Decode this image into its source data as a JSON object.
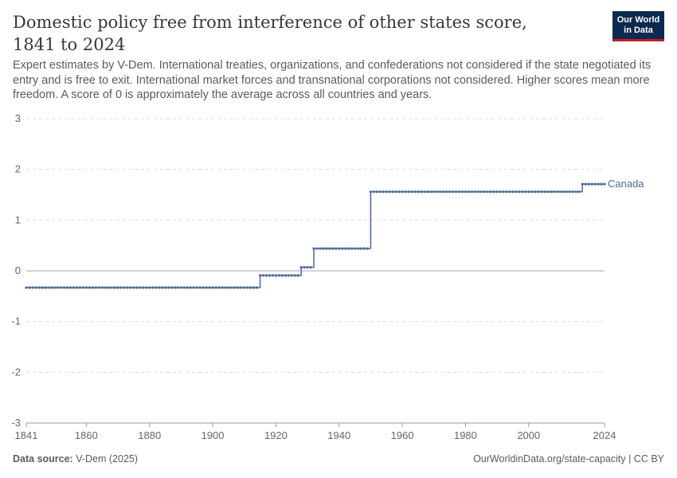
{
  "header": {
    "title": "Domestic policy free from interference of other states score, 1841 to 2024",
    "subtitle": "Expert estimates by V-Dem. International treaties, organizations, and confederations not considered if the state negotiated its entry and is free to exit. International market forces and transnational corporations not considered. Higher scores mean more freedom. A score of 0 is approximately the average across all countries and years.",
    "logo_line1": "Our World",
    "logo_line2": "in Data"
  },
  "footer": {
    "source_label": "Data source:",
    "source_value": "V-Dem (2025)",
    "url": "OurWorldinData.org/state-capacity | CC BY"
  },
  "colors": {
    "series": "#4c6a9c",
    "grid": "#dddddd",
    "zero_line": "#aaaaaa",
    "axis_text": "#666666",
    "logo_bg": "#0c2a4f",
    "logo_accent": "#be1e2d"
  },
  "chart_data": {
    "type": "line",
    "xlim": [
      1841,
      2024
    ],
    "ylim": [
      -3,
      3
    ],
    "y_ticks": [
      3,
      2,
      1,
      0,
      -1,
      -2,
      -3
    ],
    "y_tick_labels": [
      "3",
      "2",
      "1",
      "0",
      "-1",
      "-2",
      "-3"
    ],
    "x_ticks": [
      1841,
      1860,
      1880,
      1900,
      1920,
      1940,
      1960,
      1980,
      2000,
      2024
    ],
    "x_tick_labels": [
      "1841",
      "1860",
      "1880",
      "1900",
      "1920",
      "1940",
      "1960",
      "1980",
      "2000",
      "2024"
    ],
    "grid": "horizontal dashed",
    "series": [
      {
        "name": "Canada",
        "steps": [
          {
            "from": 1841,
            "to": 1914,
            "value": -0.33
          },
          {
            "from": 1915,
            "to": 1927,
            "value": -0.09
          },
          {
            "from": 1928,
            "to": 1931,
            "value": 0.07
          },
          {
            "from": 1932,
            "to": 1949,
            "value": 0.44
          },
          {
            "from": 1950,
            "to": 2016,
            "value": 1.56
          },
          {
            "from": 2017,
            "to": 2024,
            "value": 1.71
          }
        ]
      }
    ]
  }
}
